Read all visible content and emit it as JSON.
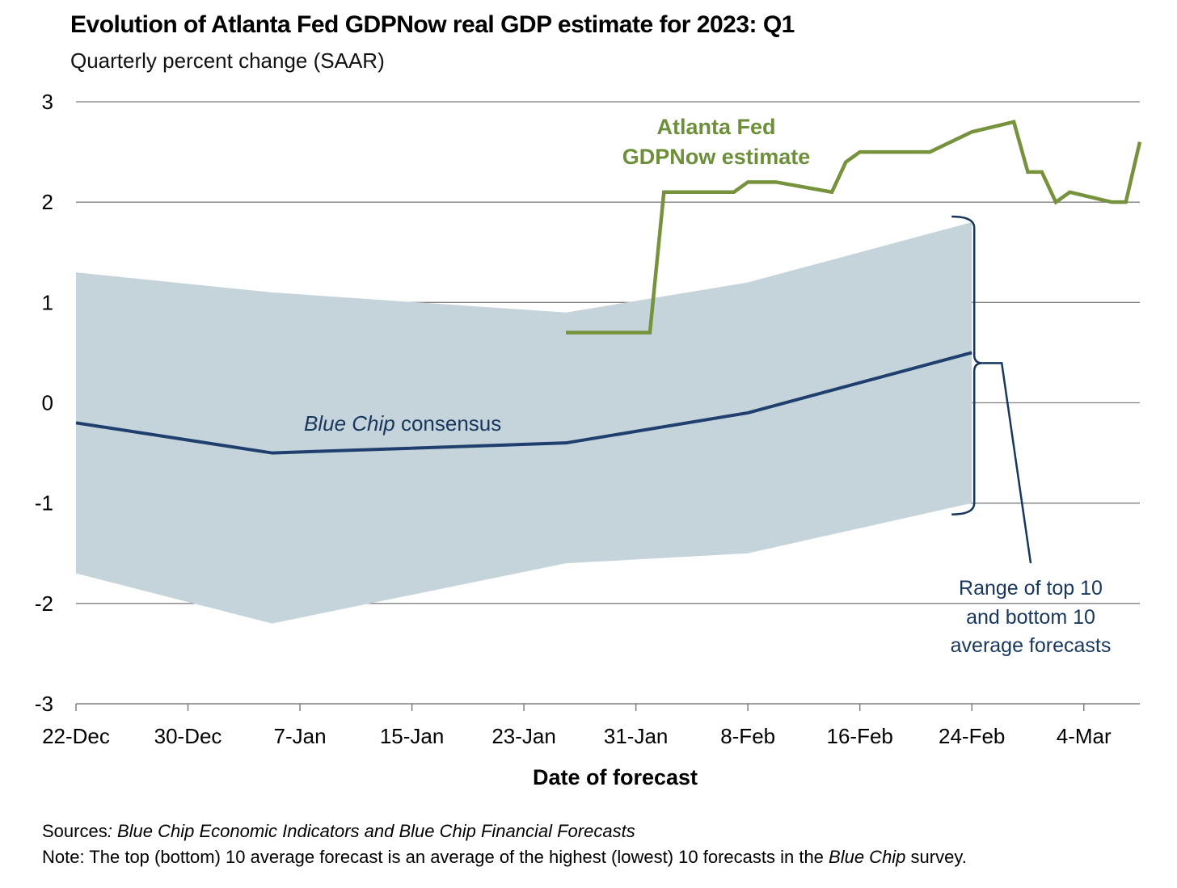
{
  "title": "Evolution of Atlanta Fed GDPNow real GDP estimate for 2023: Q1",
  "subtitle": "Quarterly percent change (SAAR)",
  "footer": {
    "sources_label": "Sources",
    "sources_text": ": Blue Chip Economic Indicators and Blue Chip Financial Forecasts",
    "note_label": "Note:",
    "note_text_1": " The top (bottom) 10 average forecast is an average of the highest (lowest) 10 forecasts in the ",
    "note_italic": "Blue Chip",
    "note_text_2": " survey."
  },
  "chart_data": {
    "type": "line",
    "title": "Evolution of Atlanta Fed GDPNow real GDP estimate for 2023: Q1",
    "subtitle": "Quarterly percent change (SAAR)",
    "xlabel": "Date of forecast",
    "ylabel": "",
    "ylim": [
      -3,
      3
    ],
    "yticks": [
      3,
      2,
      1,
      0,
      -1,
      -2,
      -3
    ],
    "xtick_labels": [
      "22-Dec",
      "30-Dec",
      "7-Jan",
      "15-Jan",
      "23-Jan",
      "31-Jan",
      "8-Feb",
      "16-Feb",
      "24-Feb",
      "4-Mar"
    ],
    "xtick_dates": [
      "2022-12-22",
      "2022-12-30",
      "2023-01-07",
      "2023-01-15",
      "2023-01-23",
      "2023-01-31",
      "2023-02-08",
      "2023-02-16",
      "2023-02-24",
      "2023-03-04"
    ],
    "xlim": [
      "2022-12-22",
      "2023-03-08"
    ],
    "grid": true,
    "colors": {
      "gdpnow": "#76923c",
      "consensus": "#1f3f6e",
      "range": "#c5d3db",
      "annotation": "#17375e"
    },
    "series": [
      {
        "name": "Atlanta Fed GDPNow estimate",
        "points": [
          [
            "2023-01-26",
            0.7
          ],
          [
            "2023-02-01",
            0.7
          ],
          [
            "2023-02-02",
            2.1
          ],
          [
            "2023-02-07",
            2.1
          ],
          [
            "2023-02-08",
            2.2
          ],
          [
            "2023-02-10",
            2.2
          ],
          [
            "2023-02-14",
            2.1
          ],
          [
            "2023-02-15",
            2.4
          ],
          [
            "2023-02-16",
            2.5
          ],
          [
            "2023-02-21",
            2.5
          ],
          [
            "2023-02-24",
            2.7
          ],
          [
            "2023-02-27",
            2.8
          ],
          [
            "2023-02-28",
            2.3
          ],
          [
            "2023-03-01",
            2.3
          ],
          [
            "2023-03-02",
            2.0
          ],
          [
            "2023-03-03",
            2.1
          ],
          [
            "2023-03-06",
            2.0
          ],
          [
            "2023-03-07",
            2.0
          ],
          [
            "2023-03-08",
            2.6
          ]
        ]
      },
      {
        "name": "Blue Chip consensus",
        "points": [
          [
            "2022-12-22",
            -0.2
          ],
          [
            "2023-01-05",
            -0.5
          ],
          [
            "2023-01-26",
            -0.4
          ],
          [
            "2023-02-08",
            -0.1
          ],
          [
            "2023-02-24",
            0.5
          ]
        ]
      },
      {
        "name": "Range of top 10 and bottom 10 average forecasts",
        "dates": [
          "2022-12-22",
          "2023-01-05",
          "2023-01-26",
          "2023-02-08",
          "2023-02-24"
        ],
        "top10": [
          1.3,
          1.1,
          0.9,
          1.2,
          1.8
        ],
        "bottom10": [
          -1.7,
          -2.2,
          -1.6,
          -1.5,
          -1.0
        ]
      }
    ],
    "annotations": {
      "gdpnow_line1": "Atlanta Fed",
      "gdpnow_line2": "GDPNow estimate",
      "consensus_italic": "Blue Chip",
      "consensus_rest": " consensus",
      "range_line1": "Range of top 10",
      "range_line2": "and bottom 10",
      "range_line3": "average forecasts"
    }
  }
}
